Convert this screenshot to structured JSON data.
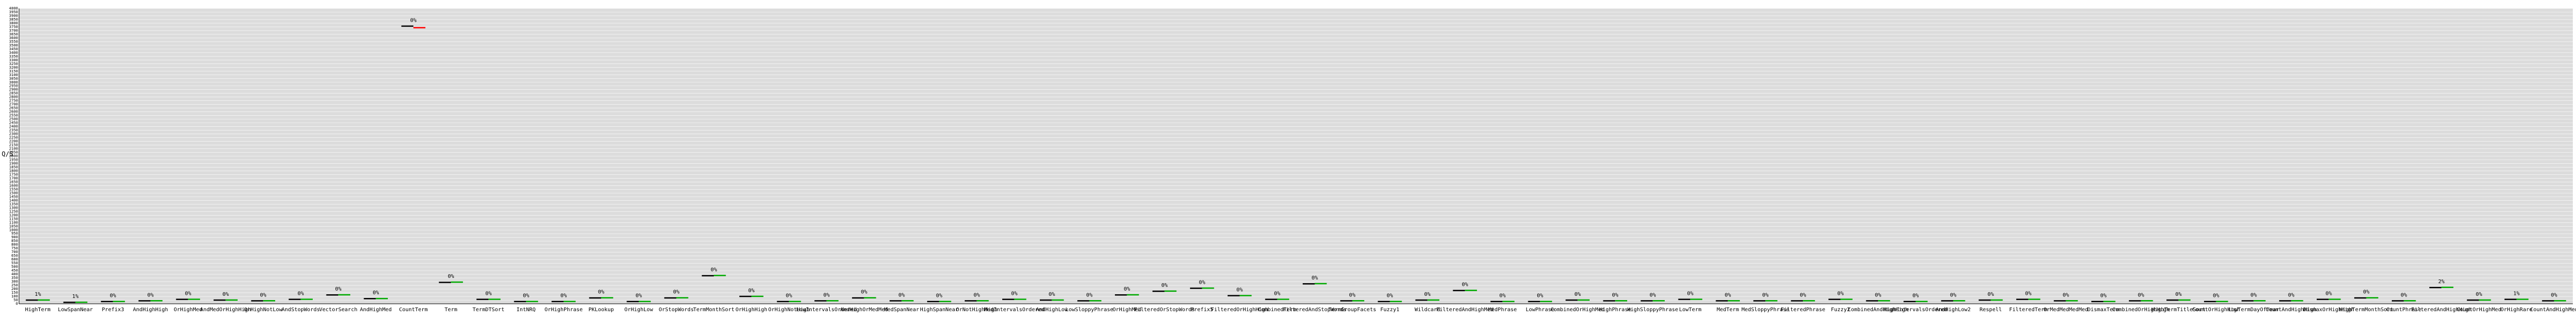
{
  "chart_data": {
    "type": "bar",
    "xlabel": "",
    "ylabel": "Q/S",
    "grid": true,
    "background": "#dcdcdc",
    "baseline_color": "#000000",
    "contender_color": "#ff0000",
    "better_color": "#00aa00",
    "ylim": [
      0,
      4000
    ],
    "yticks": [
      0,
      50,
      100,
      150,
      200,
      250,
      300,
      350,
      400,
      450,
      500,
      550,
      600,
      650,
      700,
      750,
      800,
      850,
      900,
      950,
      1000,
      1050,
      1100,
      1150,
      1200,
      1250,
      1300,
      1350,
      1400,
      1450,
      1500,
      1550,
      1600,
      1650,
      1700,
      1750,
      1800,
      1850,
      1900,
      1950,
      2000,
      2050,
      2100,
      2150,
      2200,
      2250,
      2300,
      2350,
      2400,
      2450,
      2500,
      2550,
      2600,
      2650,
      2700,
      2750,
      2800,
      2850,
      2900,
      2950,
      3000,
      3050,
      3100,
      3150,
      3200,
      3250,
      3300,
      3350,
      3400,
      3450,
      3500,
      3550,
      3600,
      3650,
      3700,
      3750,
      3800,
      3850,
      3900,
      3950,
      4000
    ],
    "categories": [
      "HighTerm",
      "LowSpanNear",
      "Prefix3",
      "AndHighHigh",
      "OrHighMed",
      "AndMedOrHighHigh",
      "OrHighNotLow",
      "AndStopWords",
      "VectorSearch",
      "AndHighMed",
      "CountTerm",
      "Term",
      "TermDTSort",
      "IntNRQ",
      "OrHighPhrase",
      "PKLookup",
      "OrHighLow",
      "OrStopWords",
      "TermMonthSort",
      "OrHighHigh",
      "OrHighNotHigh",
      "LowIntervalsOrdered",
      "AndHighOrMedMed",
      "MedSpanNear",
      "HighSpanNear",
      "OrNotHighHigh",
      "MedIntervalsOrdered",
      "AndHighLow",
      "LowSloppyPhrase",
      "OrHighMed",
      "FilteredOrStopWords",
      "Prefix5",
      "FilteredOrHighHigh",
      "CombinedTerm",
      "FilteredAndStopWords",
      "TermGroupFacets",
      "Fuzzy1",
      "Wildcard",
      "FilteredAndHighMed",
      "MedPhrase",
      "LowPhrase",
      "CombinedOrHighMed",
      "HighPhrase",
      "HighSloppyPhrase",
      "LowTerm",
      "MedTerm",
      "MedSloppyPhrase",
      "FilteredPhrase",
      "Fuzzy2",
      "CombinedAndHighHigh",
      "HighIntervalsOrdered",
      "AndHighLow2",
      "Respell",
      "FilteredTerm",
      "OrMedMedMedMed",
      "DismaxTerm",
      "CombinedOrHighHigh",
      "HighTermTitleSort",
      "CountOrHighHigh",
      "LowTermDayOfYear",
      "CountAndHighHigh",
      "DismaxOrHighHigh",
      "HighTermMonthSort",
      "CountPhrase",
      "FilteredAndHighHigh",
      "CountOrHighMed",
      "OrHighRare",
      "CountAndHighMed"
    ],
    "series": [
      {
        "name": "",
        "values": [
          50,
          20,
          30,
          40,
          60,
          50,
          40,
          60,
          120,
          70,
          3760,
          290,
          60,
          30,
          30,
          80,
          30,
          80,
          380,
          100,
          30,
          40,
          80,
          40,
          30,
          40,
          60,
          50,
          40,
          120,
          170,
          210,
          110,
          60,
          270,
          40,
          30,
          50,
          180,
          30,
          30,
          50,
          40,
          40,
          60,
          40,
          40,
          40,
          60,
          40,
          30,
          40,
          50,
          60,
          40,
          30,
          40,
          50,
          30,
          40,
          40,
          60,
          80,
          40,
          220,
          50,
          60,
          40
        ]
      },
      {
        "name": "",
        "values": [
          51,
          21,
          31,
          41,
          61,
          51,
          41,
          61,
          122,
          71,
          3740,
          293,
          61,
          31,
          31,
          81,
          31,
          81,
          384,
          101,
          31,
          41,
          81,
          41,
          31,
          41,
          61,
          51,
          41,
          122,
          172,
          212,
          111,
          61,
          273,
          41,
          31,
          51,
          182,
          31,
          31,
          51,
          41,
          41,
          61,
          41,
          41,
          41,
          61,
          41,
          31,
          41,
          51,
          61,
          41,
          31,
          41,
          51,
          31,
          41,
          41,
          61,
          81,
          41,
          223,
          51,
          61,
          41
        ]
      }
    ],
    "data_labels": [
      "1%",
      "1%",
      "0%",
      "0%",
      "0%",
      "0%",
      "0%",
      "0%",
      "0%",
      "0%",
      "0%",
      "0%",
      "0%",
      "0%",
      "0%",
      "0%",
      "0%",
      "0%",
      "0%",
      "0%",
      "0%",
      "0%",
      "0%",
      "0%",
      "0%",
      "0%",
      "0%",
      "0%",
      "0%",
      "0%",
      "0%",
      "0%",
      "0%",
      "0%",
      "0%",
      "0%",
      "0%",
      "0%",
      "0%",
      "0%",
      "0%",
      "0%",
      "0%",
      "0%",
      "0%",
      "0%",
      "0%",
      "0%",
      "0%",
      "0%",
      "0%",
      "0%",
      "0%",
      "0%",
      "0%",
      "0%",
      "0%",
      "0%",
      "0%",
      "0%",
      "0%",
      "0%",
      "0%",
      "0%",
      "2%",
      "0%",
      "1%",
      "0%"
    ]
  }
}
